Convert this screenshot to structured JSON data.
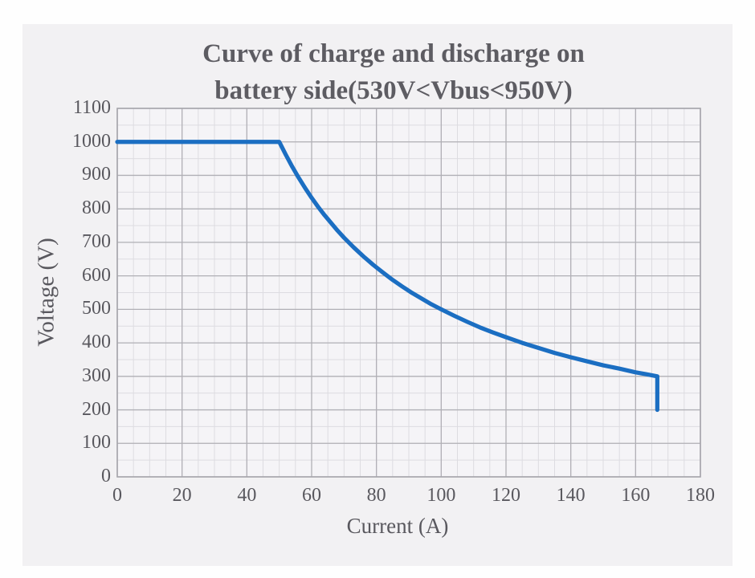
{
  "colors": {
    "background": "#fefefe",
    "panel": "#f2f1f3",
    "plot_fill": "#f5f4f7",
    "grid_major": "#b1b0b6",
    "grid_minor": "#dddce1",
    "plot_border": "#a7a6ac",
    "curve": "#1b6ec2",
    "text": "#59585e",
    "title_text": "#5d5c62"
  },
  "chart_data": {
    "type": "line",
    "title": "Curve of charge and discharge on battery side(530V<Vbus<950V)",
    "title_lines": [
      "Curve of charge and discharge on",
      "battery side(530V<Vbus<950V)"
    ],
    "xlabel": "Current (A)",
    "ylabel": "Voltage (V)",
    "xlim": [
      0,
      180
    ],
    "ylim": [
      0,
      1100
    ],
    "xticks": [
      0,
      20,
      40,
      60,
      80,
      100,
      120,
      140,
      160,
      180
    ],
    "yticks": [
      0,
      100,
      200,
      300,
      400,
      500,
      600,
      700,
      800,
      900,
      1000,
      1100
    ],
    "x_minor_step": 5,
    "y_minor_step": 50,
    "grid": "major+minor",
    "legend_position": "none",
    "series": [
      {
        "color": "#1b6ec2",
        "points": [
          [
            0,
            1000
          ],
          [
            50,
            1000
          ],
          [
            52,
            962
          ],
          [
            54,
            926
          ],
          [
            56,
            893
          ],
          [
            58,
            862
          ],
          [
            60,
            833
          ],
          [
            62,
            806
          ],
          [
            64,
            781
          ],
          [
            66,
            758
          ],
          [
            68,
            735
          ],
          [
            70,
            714
          ],
          [
            73,
            685
          ],
          [
            76,
            658
          ],
          [
            79,
            633
          ],
          [
            82,
            610
          ],
          [
            85,
            588
          ],
          [
            88,
            568
          ],
          [
            91,
            549
          ],
          [
            94,
            532
          ],
          [
            97,
            515
          ],
          [
            100,
            500
          ],
          [
            104,
            481
          ],
          [
            108,
            463
          ],
          [
            112,
            446
          ],
          [
            116,
            431
          ],
          [
            120,
            417
          ],
          [
            125,
            400
          ],
          [
            130,
            385
          ],
          [
            135,
            370
          ],
          [
            140,
            357
          ],
          [
            145,
            345
          ],
          [
            150,
            333
          ],
          [
            155,
            323
          ],
          [
            160,
            312
          ],
          [
            163,
            307
          ],
          [
            166.7,
            300
          ],
          [
            166.7,
            200
          ]
        ]
      }
    ]
  }
}
